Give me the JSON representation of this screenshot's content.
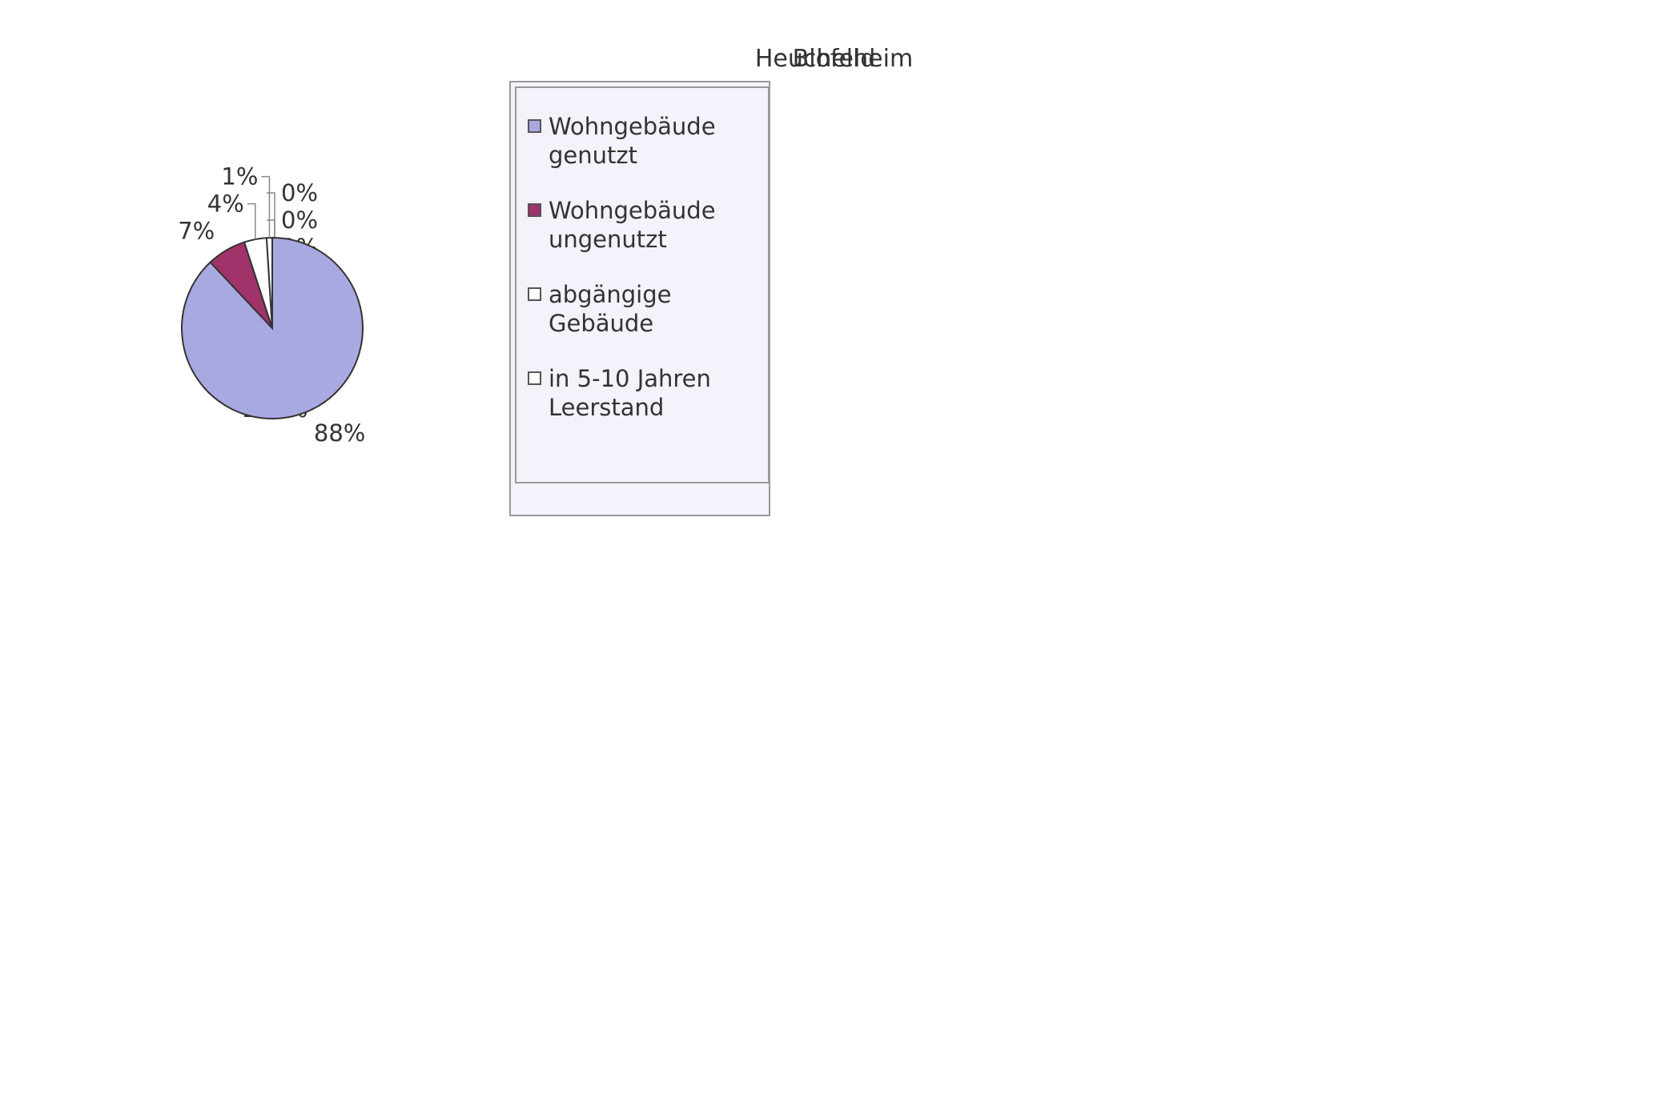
{
  "chart_data": [
    {
      "type": "pie",
      "title": "Heuchelheim",
      "categories": [
        "Wohngebäude genutzt",
        "Wohngebäude ungenutzt",
        "abgängige Gebäude",
        "in 5-10 Jahren Leerstand"
      ],
      "values": [
        100,
        0,
        0,
        0
      ],
      "value_labels": [
        "100%",
        "0%",
        "0%",
        "0%"
      ],
      "colors": [
        "#a9a9e2",
        "#a0336a",
        "#ffffff",
        "#ffffff"
      ]
    },
    {
      "type": "pie",
      "title": "Blofeld",
      "categories": [
        "Wohngebäude genutzt",
        "Wohngebäude ungenutzt",
        "abgängige Gebäude",
        "in 5-10 Jahren Leerstand"
      ],
      "values": [
        88,
        7,
        4,
        1
      ],
      "value_labels": [
        "88%",
        "7%",
        "4%",
        "1%"
      ],
      "colors": [
        "#a9a9e2",
        "#a0336a",
        "#ffffff",
        "#ffffff"
      ]
    }
  ]
}
